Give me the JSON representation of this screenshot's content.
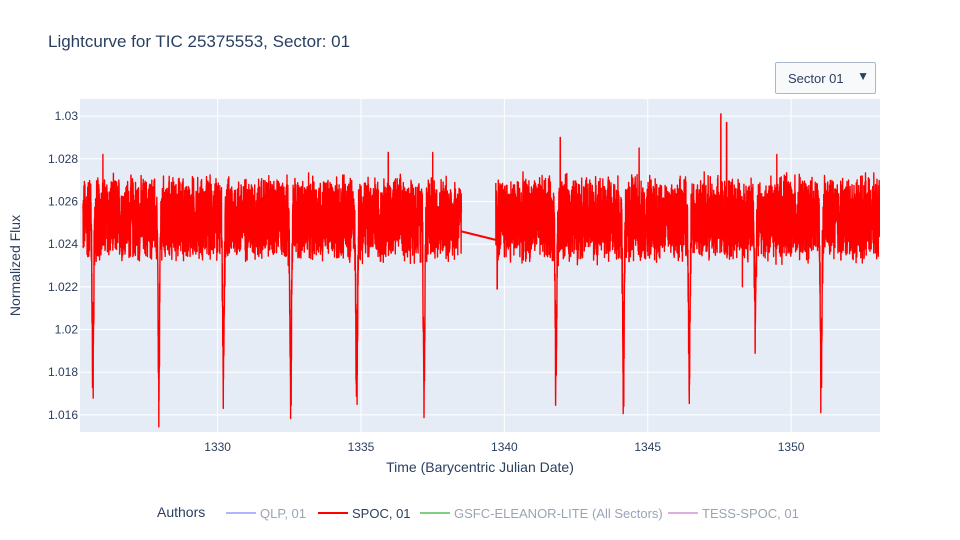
{
  "header": {
    "title": "Lightcurve for TIC 25375553, Sector: 01"
  },
  "dropdown": {
    "selected": "Sector 01"
  },
  "colors": {
    "plot_bg": "#e5ecf6",
    "grid": "#ffffff",
    "text": "#2a3f5f",
    "inactive_text": "#9aa4b6"
  },
  "chart_data": {
    "type": "line",
    "xlabel": "Time (Barycentric Julian Date)",
    "ylabel": "Normalized Flux",
    "xlim": [
      1325.2,
      1353.1
    ],
    "ylim": [
      1.0152,
      1.0308
    ],
    "x_ticks": [
      1330,
      1335,
      1340,
      1345,
      1350
    ],
    "y_ticks": [
      1.016,
      1.018,
      1.02,
      1.022,
      1.024,
      1.026,
      1.028,
      1.03
    ],
    "y_tick_labels": [
      "1.016",
      "1.018",
      "1.02",
      "1.022",
      "1.024",
      "1.026",
      "1.028",
      "1.03"
    ],
    "grid": true,
    "legend": {
      "title": "Authors",
      "position": "bottom",
      "entries": [
        {
          "name": "QLP, 01",
          "color": "#636efa",
          "visible": false
        },
        {
          "name": "SPOC, 01",
          "color": "#ff0000",
          "visible": true
        },
        {
          "name": "GSFC-ELEANOR-LITE (All Sectors)",
          "color": "#00a000",
          "visible": false
        },
        {
          "name": "TESS-SPOC, 01",
          "color": "#c060c0",
          "visible": false
        }
      ]
    },
    "series": [
      {
        "name": "SPOC, 01",
        "color": "#ff0000",
        "baseline": 1.0252,
        "noise_band": [
          1.0232,
          1.0272
        ],
        "segments": [
          [
            1325.3,
            1338.5
          ],
          [
            1339.7,
            1353.1
          ]
        ],
        "gap_line": {
          "x": [
            1338.5,
            1339.7
          ],
          "y": [
            1.0246,
            1.0242
          ]
        },
        "dips": [
          {
            "x": 1325.65,
            "min": 1.0165
          },
          {
            "x": 1327.95,
            "min": 1.0168
          },
          {
            "x": 1330.2,
            "min": 1.0167
          },
          {
            "x": 1332.55,
            "min": 1.0162
          },
          {
            "x": 1334.85,
            "min": 1.0161
          },
          {
            "x": 1337.2,
            "min": 1.0165
          },
          {
            "x": 1341.8,
            "min": 1.0168
          },
          {
            "x": 1344.15,
            "min": 1.0164
          },
          {
            "x": 1346.45,
            "min": 1.0164
          },
          {
            "x": 1348.75,
            "min": 1.0199
          },
          {
            "x": 1351.05,
            "min": 1.0165
          }
        ],
        "spikes": [
          {
            "x": 1347.55,
            "max": 1.0301
          },
          {
            "x": 1347.75,
            "max": 1.0297
          },
          {
            "x": 1341.95,
            "max": 1.029
          },
          {
            "x": 1337.5,
            "max": 1.0283
          },
          {
            "x": 1335.95,
            "max": 1.0283
          },
          {
            "x": 1326.0,
            "max": 1.0282
          },
          {
            "x": 1344.7,
            "max": 1.0285
          },
          {
            "x": 1349.5,
            "max": 1.0282
          }
        ],
        "low_excursions": [
          {
            "x": 1339.75,
            "min": 1.0219
          },
          {
            "x": 1348.3,
            "min": 1.022
          }
        ]
      }
    ]
  }
}
